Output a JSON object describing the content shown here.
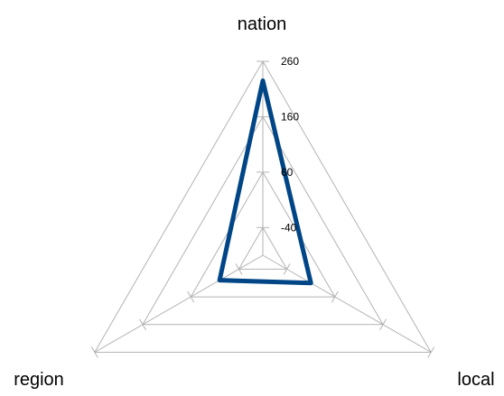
{
  "chart_data": {
    "type": "radar",
    "categories": [
      "nation",
      "local",
      "region"
    ],
    "series": [
      {
        "values": [
          225,
          10,
          0
        ],
        "color": "#004586"
      }
    ],
    "rlim": [
      -90,
      260
    ],
    "ticks": [
      260,
      160,
      60,
      -40
    ],
    "tick_labels": [
      "260",
      "160",
      "60",
      "-40"
    ],
    "grid": true,
    "legend": "none",
    "colors": {
      "grid": "#b3b3b3",
      "series": "#004586"
    }
  }
}
